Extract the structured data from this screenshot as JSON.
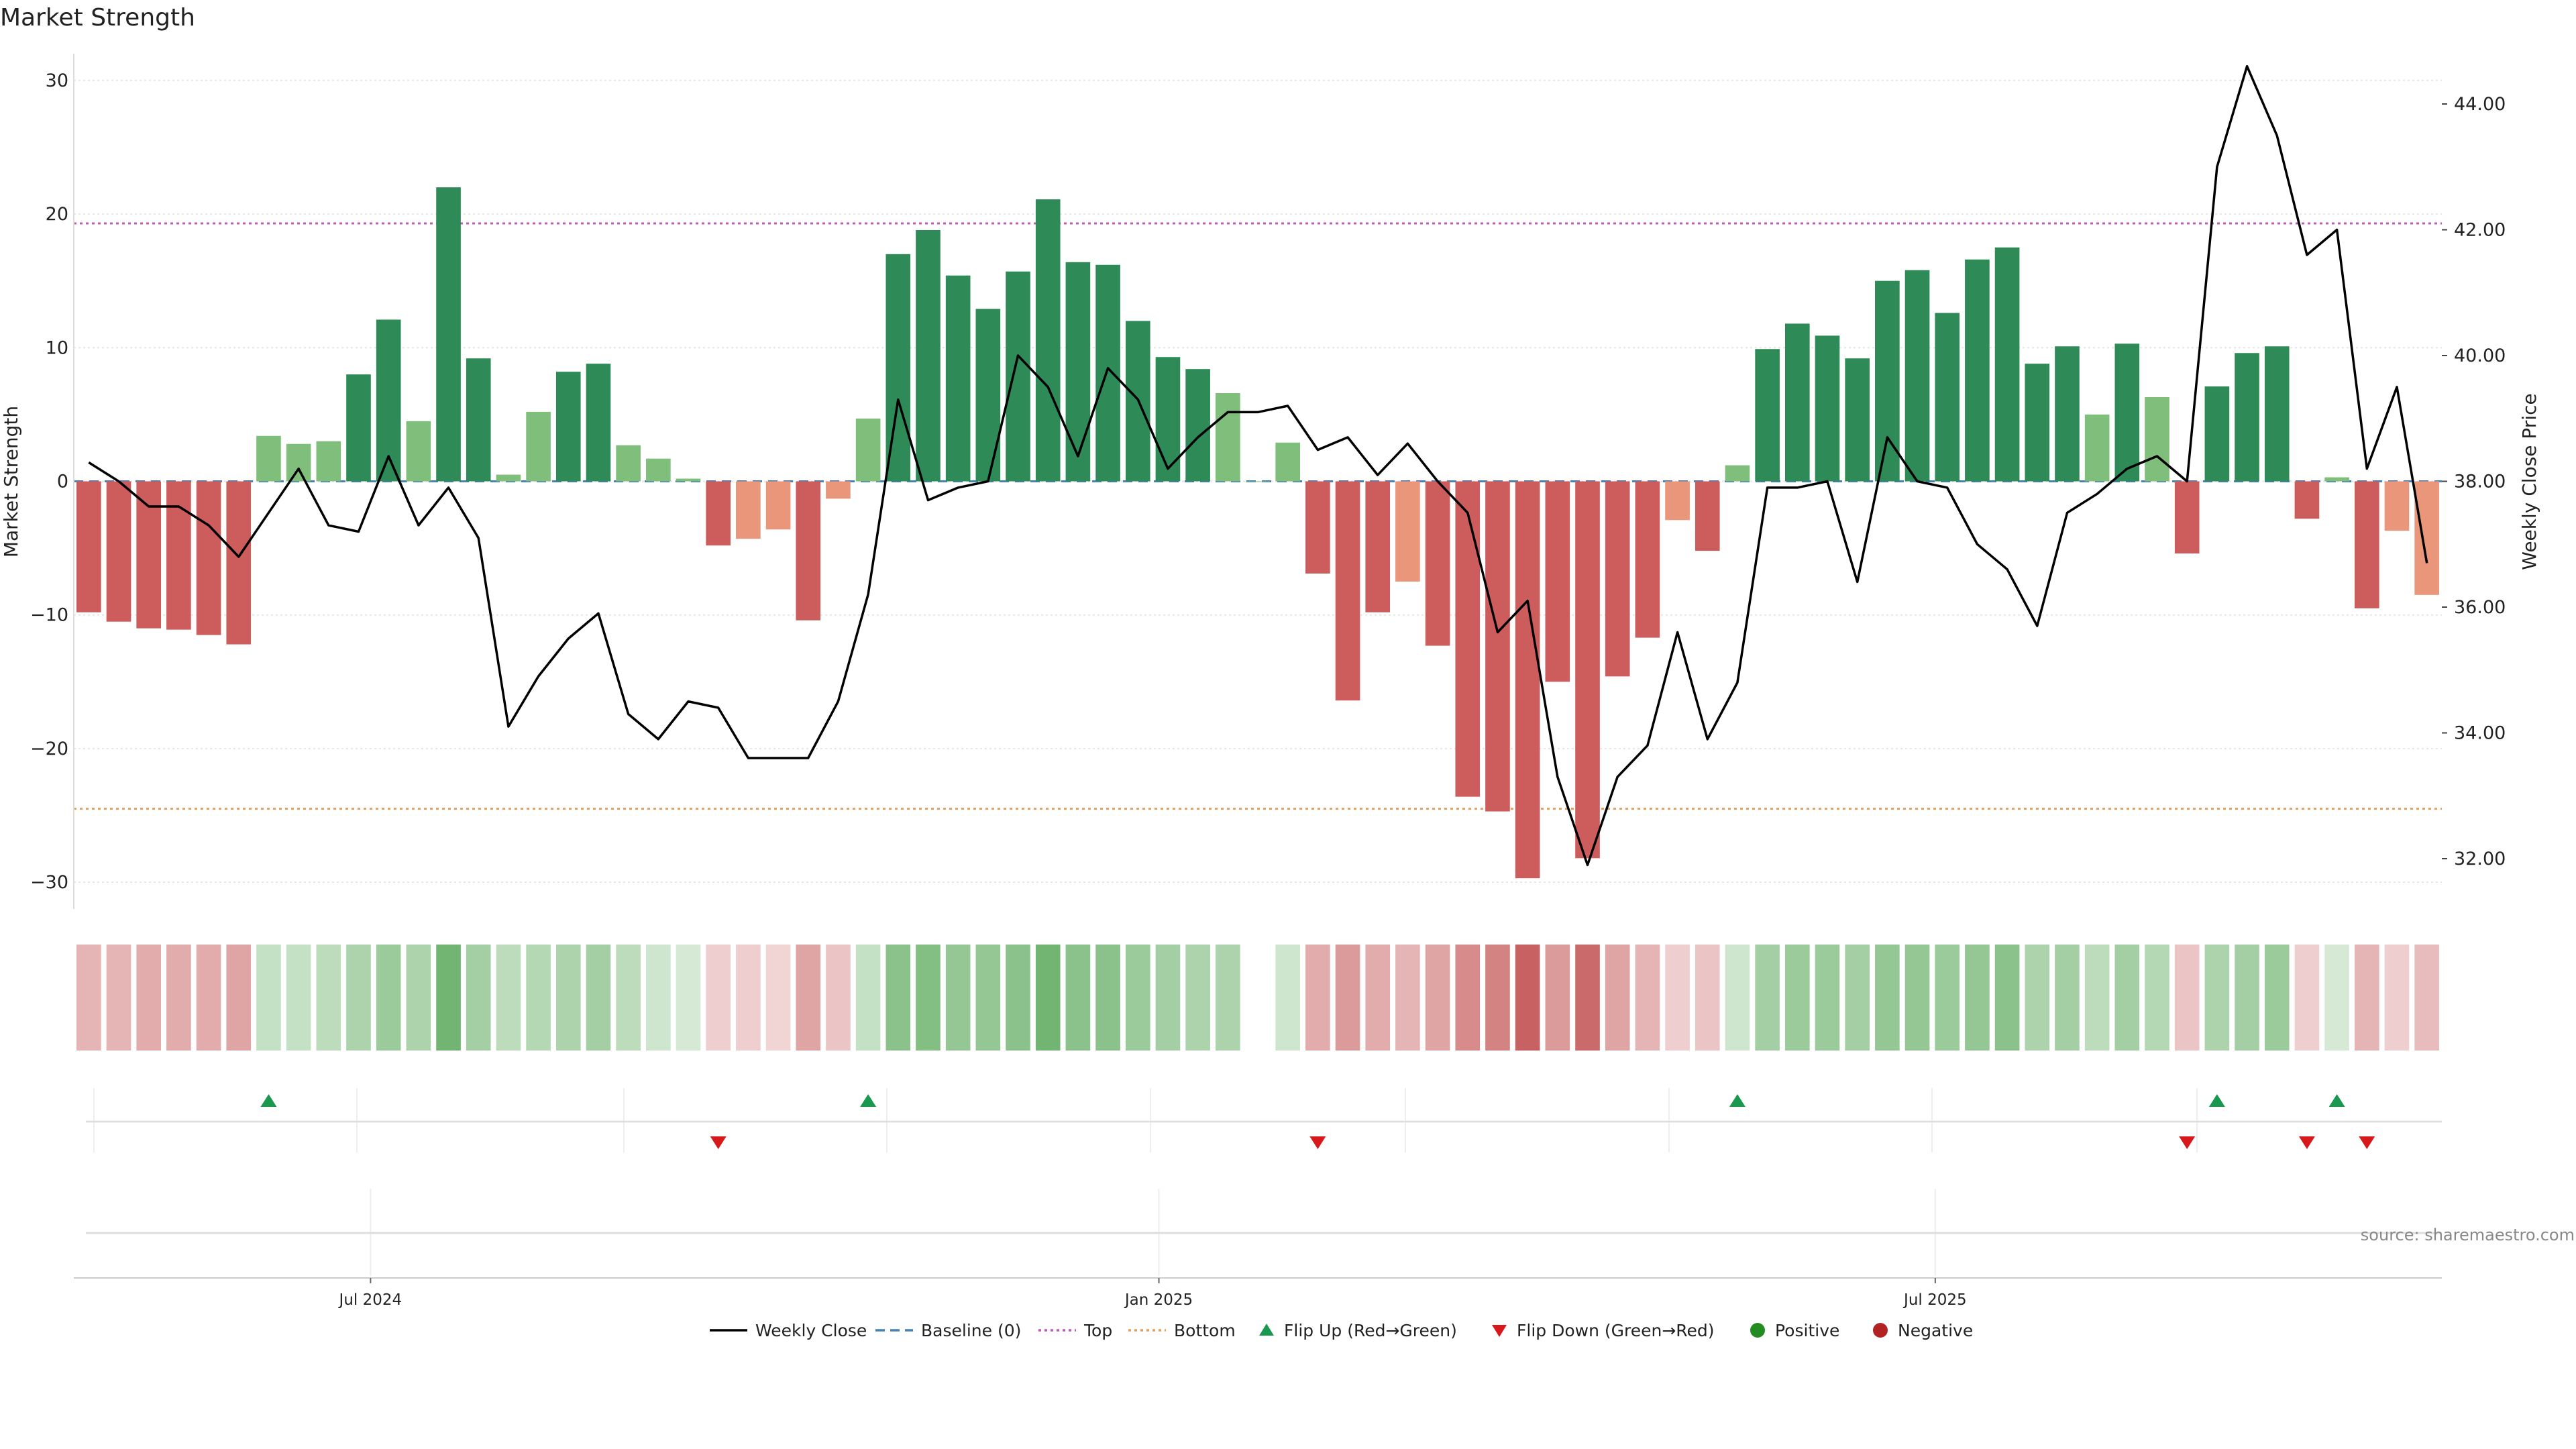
{
  "chart_data": {
    "type": "bar",
    "title": "Market Strength",
    "ylabel_left": "Market Strength",
    "ylabel_right": "Weekly Close Price",
    "ylim_left": [
      -32,
      32
    ],
    "ylim_right": [
      31.2,
      44.8
    ],
    "yticks_left": [
      "30",
      "20",
      "10",
      "0",
      "−10",
      "−20",
      "−30"
    ],
    "yticks_left_values": [
      30,
      20,
      10,
      0,
      -10,
      -20,
      -30
    ],
    "yticks_right": [
      "44.00",
      "42.00",
      "40.00",
      "38.00",
      "36.00",
      "34.00",
      "32.00"
    ],
    "yticks_right_values": [
      44,
      42,
      40,
      38,
      36,
      34,
      32
    ],
    "xticks": [
      "Jul 2024",
      "Jan 2025",
      "Jul 2025"
    ],
    "xticks_week_index": [
      9.4,
      35.7,
      61.6
    ],
    "weeks": 79,
    "top_threshold": 19.3,
    "bottom_threshold": -24.5,
    "strength": [
      -9.8,
      -10.5,
      -11,
      -11.1,
      -11.5,
      -12.2,
      3.4,
      2.8,
      3,
      8,
      12.1,
      4.5,
      22,
      9.2,
      0.5,
      5.2,
      8.2,
      8.8,
      2.7,
      1.7,
      0.2,
      -4.8,
      -4.3,
      -3.6,
      -10.4,
      -1.3,
      4.7,
      17,
      18.8,
      15.4,
      12.9,
      15.7,
      21.1,
      16.4,
      16.2,
      12,
      9.3,
      8.4,
      6.6,
      0,
      2.9,
      -6.9,
      -16.4,
      -9.8,
      -7.5,
      -12.3,
      -23.6,
      -24.7,
      -29.7,
      -15,
      -28.2,
      -14.6,
      -11.7,
      -2.9,
      -5.2,
      1.2,
      9.9,
      11.8,
      10.9,
      9.2,
      15,
      15.8,
      12.6,
      16.6,
      17.5,
      8.8,
      10.1,
      5,
      10.3,
      6.3,
      -5.4,
      7.1,
      9.6,
      10.1,
      -2.8,
      0.3,
      -9.5,
      -3.7,
      -8.5
    ],
    "series": [
      {
        "name": "Weekly Close",
        "values": [
          38.3,
          38,
          37.6,
          37.6,
          37.3,
          36.8,
          37.5,
          38.2,
          37.3,
          37.2,
          38.4,
          37.3,
          37.9,
          37.1,
          34.1,
          34.9,
          35.5,
          35.9,
          34.3,
          33.9,
          34.5,
          34.4,
          33.6,
          33.6,
          33.6,
          34.5,
          36.2,
          39.3,
          37.7,
          37.9,
          38,
          40,
          39.5,
          38.4,
          39.8,
          39.3,
          38.2,
          38.7,
          39.1,
          39.1,
          39.2,
          38.5,
          38.7,
          38.1,
          38.6,
          38,
          37.5,
          35.6,
          36.1,
          33.3,
          31.9,
          33.3,
          33.8,
          35.6,
          33.9,
          34.8,
          37.9,
          37.9,
          38,
          36.4,
          38.7,
          38,
          37.9,
          37,
          36.6,
          35.7,
          37.5,
          37.8,
          38.2,
          38.4,
          38,
          43,
          44.6,
          43.5,
          41.6,
          42,
          38.2,
          39.5,
          36.7
        ]
      }
    ],
    "heat_strip_alpha": [
      0.45,
      0.45,
      0.5,
      0.5,
      0.5,
      0.55,
      0.35,
      0.35,
      0.4,
      0.5,
      0.6,
      0.5,
      0.85,
      0.55,
      0.4,
      0.45,
      0.5,
      0.55,
      0.4,
      0.3,
      0.25,
      0.3,
      0.3,
      0.25,
      0.55,
      0.35,
      0.35,
      0.7,
      0.75,
      0.65,
      0.65,
      0.7,
      0.85,
      0.7,
      0.7,
      0.6,
      0.55,
      0.5,
      0.5,
      0,
      0.3,
      0.5,
      0.6,
      0.5,
      0.45,
      0.55,
      0.7,
      0.75,
      0.95,
      0.6,
      0.9,
      0.55,
      0.45,
      0.3,
      0.35,
      0.3,
      0.55,
      0.6,
      0.6,
      0.55,
      0.65,
      0.65,
      0.6,
      0.65,
      0.7,
      0.5,
      0.55,
      0.4,
      0.55,
      0.45,
      0.35,
      0.5,
      0.55,
      0.6,
      0.3,
      0.25,
      0.45,
      0.3,
      0.4
    ],
    "flip_up_weeks": [
      6,
      26,
      55,
      71,
      75
    ],
    "flip_down_weeks": [
      21,
      41,
      70,
      74,
      76
    ],
    "colors": {
      "strong_positive": "#2e8b57",
      "positive": "#7fbf7b",
      "strong_negative": "#cd5c5c",
      "negative": "#e9967a",
      "price_line": "#000000",
      "baseline": "#4682b4",
      "top": "#c05ab4",
      "bottom": "#e2a060",
      "flip_up": "#1a9850",
      "flip_down": "#d7191c",
      "legend_positive": "#228b22",
      "legend_negative": "#b22222"
    },
    "legend": [
      "Weekly Close",
      "Baseline (0)",
      "Top",
      "Bottom",
      "Flip Up (Red→Green)",
      "Flip Down (Green→Red)",
      "Positive",
      "Negative"
    ],
    "source": "source: sharemaestro.com"
  }
}
